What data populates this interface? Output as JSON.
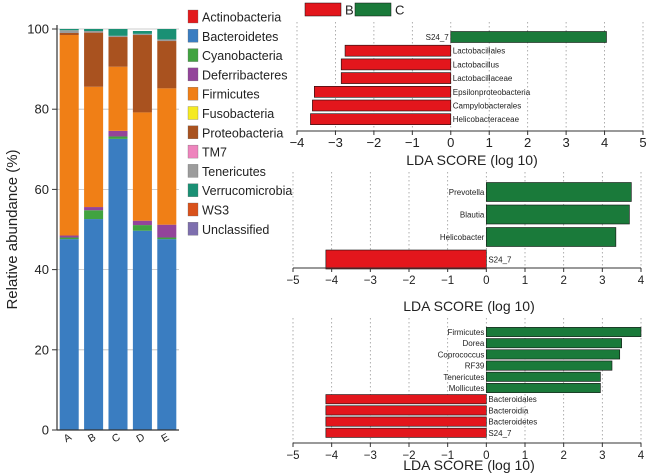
{
  "chart_data": [
    {
      "type": "bar",
      "stacked": true,
      "ylabel": "Relative abundance (%)",
      "ylim": [
        0,
        100
      ],
      "yticks": [
        "0",
        "20",
        "40",
        "60",
        "80",
        "100"
      ],
      "grid": true,
      "legend_position": "right",
      "categories": [
        "A",
        "B",
        "C",
        "D",
        "E"
      ],
      "series": [
        {
          "name": "Actinobacteria",
          "color": "#e31a1c",
          "values": [
            0.1,
            0.1,
            0.1,
            0.1,
            0.1
          ]
        },
        {
          "name": "Bacteroidetes",
          "color": "#3a7dc1",
          "values": [
            47.5,
            52.5,
            72.5,
            49.6,
            47.5
          ]
        },
        {
          "name": "Cyanobacteria",
          "color": "#41a340",
          "values": [
            0.4,
            2.2,
            0.6,
            1.4,
            0.4
          ]
        },
        {
          "name": "Deferribacteres",
          "color": "#93449a",
          "values": [
            0.5,
            0.8,
            1.4,
            1.1,
            3.2
          ]
        },
        {
          "name": "Firmicutes",
          "color": "#f07f16",
          "values": [
            50.0,
            30.0,
            16.0,
            27.0,
            34.0
          ]
        },
        {
          "name": "Fusobacteria",
          "color": "#f5ea22",
          "values": [
            0.0,
            0.0,
            0.0,
            0.0,
            0.0
          ]
        },
        {
          "name": "Proteobacteria",
          "color": "#a9521f",
          "values": [
            0.5,
            13.5,
            7.4,
            19.3,
            11.8
          ]
        },
        {
          "name": "TM7",
          "color": "#ee84bd",
          "values": [
            0.0,
            0.0,
            0.0,
            0.0,
            0.0
          ]
        },
        {
          "name": "Tenericutes",
          "color": "#9c9c9c",
          "values": [
            0.7,
            0.4,
            0.3,
            0.3,
            0.4
          ]
        },
        {
          "name": "Verrucomicrobia",
          "color": "#1a9074",
          "values": [
            0.3,
            0.5,
            1.7,
            0.7,
            2.6
          ]
        },
        {
          "name": "WS3",
          "color": "#d9521b",
          "values": [
            0.0,
            0.0,
            0.0,
            0.0,
            0.0
          ]
        },
        {
          "name": "Unclassified",
          "color": "#7e6fae",
          "values": [
            0.0,
            0.0,
            0.0,
            0.0,
            0.0
          ]
        }
      ]
    },
    {
      "type": "bar",
      "orientation": "horizontal",
      "xlabel": "LDA SCORE (log 10)",
      "xlim": [
        -4,
        5
      ],
      "xticks": [
        "−4",
        "−3",
        "−2",
        "−1",
        "0",
        "1",
        "2",
        "3",
        "4",
        "5"
      ],
      "legend": [
        {
          "name": "B",
          "color": "#e3161c"
        },
        {
          "name": "C",
          "color": "#1a7a3a"
        }
      ],
      "bars": [
        {
          "label": "S24_7",
          "value": 4.05,
          "group": "C"
        },
        {
          "label": "Lactobacillales",
          "value": -2.75,
          "group": "B"
        },
        {
          "label": "Lactobacillus",
          "value": -2.85,
          "group": "B"
        },
        {
          "label": "Lactobacillaceae",
          "value": -2.85,
          "group": "B"
        },
        {
          "label": "Epsilonproteobacteria",
          "value": -3.55,
          "group": "B"
        },
        {
          "label": "Campylobacterales",
          "value": -3.6,
          "group": "B"
        },
        {
          "label": "Helicobacteraceae",
          "value": -3.65,
          "group": "B"
        }
      ]
    },
    {
      "type": "bar",
      "orientation": "horizontal",
      "xlabel": "LDA SCORE (log 10)",
      "xlim": [
        -5,
        4
      ],
      "xticks": [
        "−5",
        "−4",
        "−3",
        "−2",
        "−1",
        "0",
        "1",
        "2",
        "3",
        "4"
      ],
      "bars": [
        {
          "label": "Prevotella",
          "value": 3.75
        },
        {
          "label": "Blautia",
          "value": 3.7
        },
        {
          "label": "Helicobacter",
          "value": 3.35
        },
        {
          "label": "S24_7",
          "value": -4.15
        }
      ]
    },
    {
      "type": "bar",
      "orientation": "horizontal",
      "xlabel": "LDA SCORE (log 10)",
      "xlim": [
        -5,
        4
      ],
      "xticks": [
        "−5",
        "−4",
        "−3",
        "−2",
        "−1",
        "0",
        "1",
        "2",
        "3",
        "4"
      ],
      "bars": [
        {
          "label": "Firmicutes",
          "value": 4.0
        },
        {
          "label": "Dorea",
          "value": 3.5
        },
        {
          "label": "Coprococcus",
          "value": 3.45
        },
        {
          "label": "RF39",
          "value": 3.25
        },
        {
          "label": "Tenericutes",
          "value": 2.95
        },
        {
          "label": "Mollicutes",
          "value": 2.95
        },
        {
          "label": "Bacteroidales",
          "value": -4.15
        },
        {
          "label": "Bacteroidia",
          "value": -4.15
        },
        {
          "label": "Bacteroidetes",
          "value": -4.15
        },
        {
          "label": "S24_7",
          "value": -4.15
        }
      ]
    }
  ]
}
